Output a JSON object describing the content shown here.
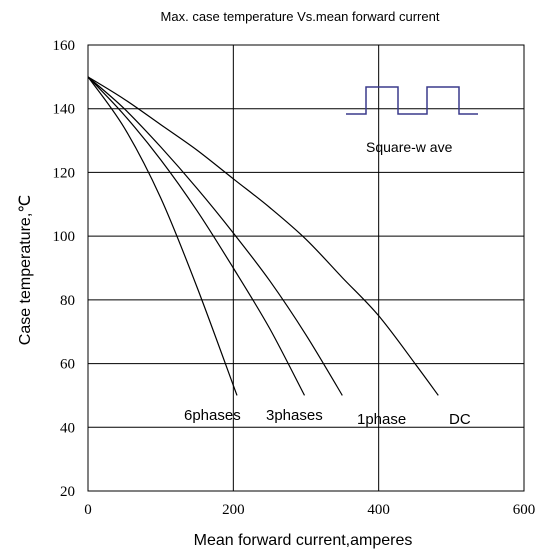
{
  "chart_data": {
    "type": "line",
    "title": "Max. case temperature  Vs.mean  forward  current",
    "xlabel": "Mean forward  current,amperes",
    "ylabel": "Case temperature,℃",
    "xlim": [
      0,
      600
    ],
    "ylim": [
      20,
      160
    ],
    "xticks": [
      0,
      200,
      400,
      600
    ],
    "yticks": [
      20,
      40,
      60,
      80,
      100,
      120,
      140,
      160
    ],
    "grid": true,
    "series": [
      {
        "name": "6phases",
        "x": [
          0,
          50,
          100,
          150,
          205
        ],
        "y": [
          150,
          134,
          112,
          84,
          50
        ]
      },
      {
        "name": "3phases",
        "x": [
          0,
          50,
          100,
          150,
          200,
          250,
          298
        ],
        "y": [
          150,
          138,
          124,
          108,
          90,
          71,
          50
        ]
      },
      {
        "name": "1phase",
        "x": [
          0,
          50,
          100,
          150,
          200,
          250,
          300,
          350
        ],
        "y": [
          150,
          140,
          128,
          115,
          101,
          86,
          69,
          50
        ]
      },
      {
        "name": "DC",
        "x": [
          0,
          50,
          100,
          150,
          200,
          250,
          300,
          350,
          400,
          450,
          482
        ],
        "y": [
          150,
          143,
          135,
          127,
          118,
          109,
          99,
          87,
          75,
          60,
          50
        ]
      }
    ],
    "inset": {
      "label": "Square-w ave"
    }
  }
}
